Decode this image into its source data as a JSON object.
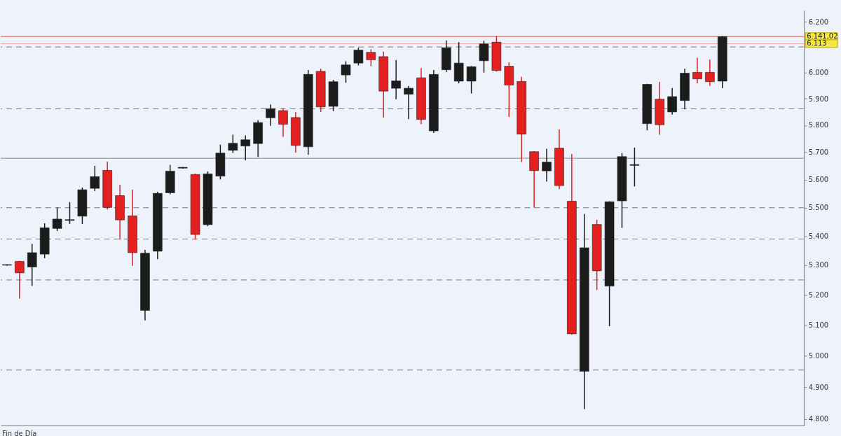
{
  "chart_data": {
    "type": "candlestick",
    "categories": [
      null,
      null,
      null,
      null,
      null,
      null,
      null,
      null,
      null,
      null,
      null,
      null,
      null,
      null,
      null,
      null,
      null,
      null,
      null,
      null,
      null,
      null,
      null,
      null,
      null,
      null,
      null,
      null,
      null,
      null,
      null,
      null,
      null,
      null,
      null,
      null,
      null,
      null,
      null,
      null,
      null,
      null,
      null,
      null,
      null,
      null,
      null,
      null,
      null,
      null,
      null,
      null,
      null,
      null,
      null,
      null,
      null,
      null,
      null,
      null,
      null,
      null,
      null,
      null
    ],
    "ohlc": [
      [
        5300,
        5303,
        5298,
        5302
      ],
      [
        5313,
        5315,
        5187,
        5274
      ],
      [
        5294,
        5373,
        5230,
        5343
      ],
      [
        5338,
        5445,
        5324,
        5429
      ],
      [
        5427,
        5501,
        5418,
        5460
      ],
      [
        5455,
        5520,
        5443,
        5458
      ],
      [
        5470,
        5572,
        5443,
        5564
      ],
      [
        5569,
        5650,
        5559,
        5611
      ],
      [
        5634,
        5666,
        5494,
        5501
      ],
      [
        5543,
        5582,
        5388,
        5457
      ],
      [
        5471,
        5564,
        5298,
        5343
      ],
      [
        5148,
        5353,
        5115,
        5341
      ],
      [
        5348,
        5557,
        5321,
        5551
      ],
      [
        5553,
        5654,
        5548,
        5631
      ],
      [
        5645,
        5646,
        5640,
        5642
      ],
      [
        5619,
        5622,
        5388,
        5406
      ],
      [
        5440,
        5630,
        5435,
        5621
      ],
      [
        5613,
        5728,
        5601,
        5697
      ],
      [
        5707,
        5765,
        5697,
        5733
      ],
      [
        5723,
        5762,
        5670,
        5746
      ],
      [
        5732,
        5819,
        5683,
        5810
      ],
      [
        5828,
        5878,
        5798,
        5862
      ],
      [
        5855,
        5864,
        5757,
        5804
      ],
      [
        5829,
        5849,
        5698,
        5725
      ],
      [
        5720,
        6010,
        5691,
        5993
      ],
      [
        6005,
        6015,
        5850,
        5869
      ],
      [
        5871,
        5972,
        5853,
        5965
      ],
      [
        5991,
        6044,
        5961,
        6030
      ],
      [
        6037,
        6097,
        6028,
        6088
      ],
      [
        6079,
        6091,
        6025,
        6050
      ],
      [
        6062,
        6082,
        5829,
        5929
      ],
      [
        5940,
        6049,
        5898,
        5968
      ],
      [
        5917,
        5949,
        5823,
        5940
      ],
      [
        5980,
        6018,
        5804,
        5822
      ],
      [
        5779,
        6010,
        5771,
        5993
      ],
      [
        6011,
        6126,
        6002,
        6097
      ],
      [
        5967,
        6119,
        5959,
        6037
      ],
      [
        5967,
        6025,
        5920,
        6023
      ],
      [
        6046,
        6125,
        6000,
        6112
      ],
      [
        6119,
        6143,
        6004,
        6008
      ],
      [
        6025,
        6040,
        5831,
        5952
      ],
      [
        5966,
        5984,
        5664,
        5767
      ],
      [
        5702,
        5704,
        5500,
        5633
      ],
      [
        5632,
        5713,
        5593,
        5664
      ],
      [
        5715,
        5785,
        5566,
        5579
      ],
      [
        5523,
        5693,
        5068,
        5071
      ],
      [
        4950,
        5478,
        4831,
        5360
      ],
      [
        5441,
        5457,
        5216,
        5281
      ],
      [
        5229,
        5523,
        5096,
        5521
      ],
      [
        5524,
        5697,
        5429,
        5684
      ],
      [
        5652,
        5717,
        5576,
        5655
      ],
      [
        5806,
        5957,
        5781,
        5955
      ],
      [
        5898,
        5964,
        5765,
        5802
      ],
      [
        5850,
        5941,
        5840,
        5908
      ],
      [
        5893,
        6015,
        5860,
        5998
      ],
      [
        6001,
        6058,
        5959,
        5976
      ],
      [
        6001,
        6051,
        5949,
        5965
      ],
      [
        5967,
        6143,
        5940,
        6141.02
      ],
      null,
      null,
      null,
      null,
      null,
      null
    ],
    "colors": [
      "#1c1c1c",
      "#e31f1f",
      "#1c1c1c",
      "#1c1c1c",
      "#1c1c1c",
      "#1c1c1c",
      "#1c1c1c",
      "#1c1c1c",
      "#e31f1f",
      "#e31f1f",
      "#e31f1f",
      "#1c1c1c",
      "#1c1c1c",
      "#1c1c1c",
      "#1c1c1c",
      "#e31f1f",
      "#1c1c1c",
      "#1c1c1c",
      "#1c1c1c",
      "#1c1c1c",
      "#1c1c1c",
      "#1c1c1c",
      "#e31f1f",
      "#e31f1f",
      "#1c1c1c",
      "#e31f1f",
      "#1c1c1c",
      "#1c1c1c",
      "#1c1c1c",
      "#e31f1f",
      "#e31f1f",
      "#1c1c1c",
      "#1c1c1c",
      "#e31f1f",
      "#1c1c1c",
      "#1c1c1c",
      "#1c1c1c",
      "#1c1c1c",
      "#1c1c1c",
      "#e31f1f",
      "#e31f1f",
      "#e31f1f",
      "#e31f1f",
      "#1c1c1c",
      "#e31f1f",
      "#e31f1f",
      "#1c1c1c",
      "#e31f1f",
      "#1c1c1c",
      "#1c1c1c",
      "#1c1c1c",
      "#1c1c1c",
      "#e31f1f",
      "#1c1c1c",
      "#1c1c1c",
      "#e31f1f",
      "#e31f1f",
      "#1c1c1c",
      null,
      null,
      null,
      null,
      null,
      null
    ],
    "log": true,
    "ylim": [
      4780,
      6245
    ],
    "yticks": [
      {
        "value": 4800,
        "label": "4.800"
      },
      {
        "value": 4900,
        "label": "4.900"
      },
      {
        "value": 5000,
        "label": "5.000"
      },
      {
        "value": 5100,
        "label": "5.100"
      },
      {
        "value": 5200,
        "label": "5.200"
      },
      {
        "value": 5300,
        "label": "5.300"
      },
      {
        "value": 5400,
        "label": "5.400"
      },
      {
        "value": 5500,
        "label": "5.500"
      },
      {
        "value": 5600,
        "label": "5.600"
      },
      {
        "value": 5700,
        "label": "5.700"
      },
      {
        "value": 5800,
        "label": "5.800"
      },
      {
        "value": 5900,
        "label": "5.900"
      },
      {
        "value": 6000,
        "label": "6.000"
      },
      {
        "value": 6200,
        "label": "6.200"
      }
    ],
    "tick_labels": "y",
    "ref_lines": [
      {
        "axis": "y",
        "value": 6100,
        "line_style": "dashed",
        "color": "#777777"
      },
      {
        "axis": "y",
        "value": 5862,
        "line_style": "dashed",
        "color": "#777777"
      },
      {
        "axis": "y",
        "value": 5500,
        "line_style": "dashed",
        "color": "#777777"
      },
      {
        "axis": "y",
        "value": 5390,
        "line_style": "dashed",
        "color": "#777777"
      },
      {
        "axis": "y",
        "value": 5250,
        "line_style": "dashed",
        "color": "#777777"
      },
      {
        "axis": "y",
        "value": 4954,
        "line_style": "dashed",
        "color": "#777777"
      },
      {
        "axis": "y",
        "value": 5678,
        "line_style": "solid",
        "color": "#888888"
      },
      {
        "axis": "y",
        "value": 6141.02,
        "label": "6.141,02",
        "line_style": "solid",
        "color": "#e05a5a"
      },
      {
        "axis": "y",
        "value": 6113,
        "label": "6.113",
        "line_style": "solid",
        "color": "#f0a0a0"
      }
    ],
    "annotations": [
      "Fin de Día"
    ]
  }
}
